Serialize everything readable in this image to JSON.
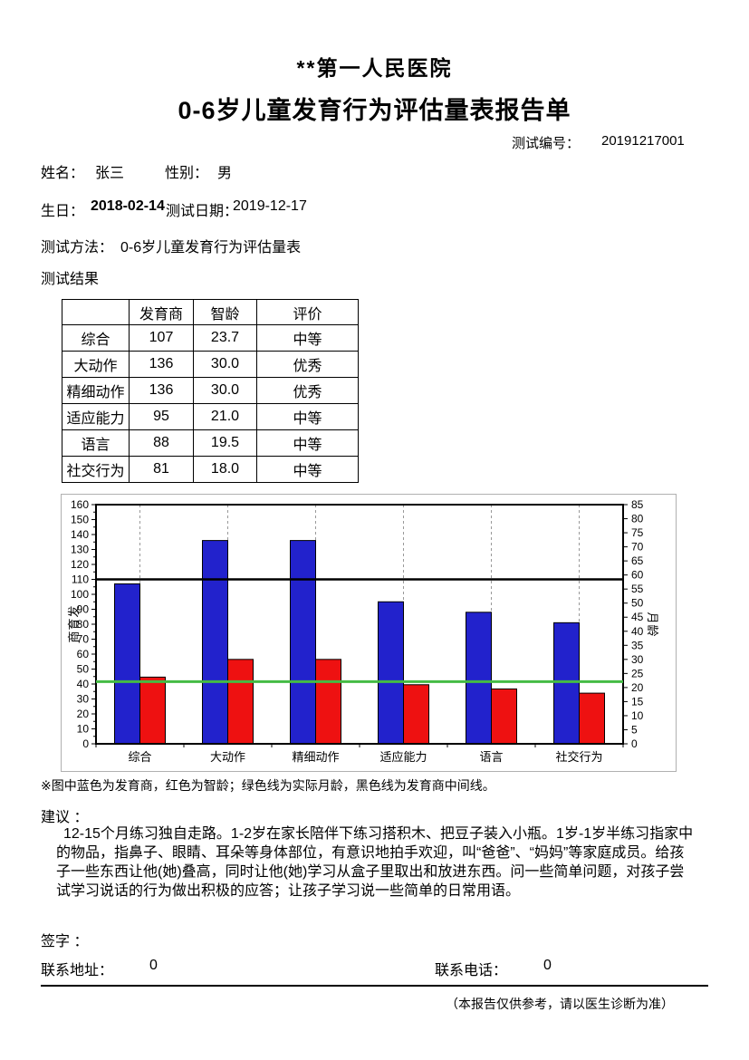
{
  "header": {
    "hospital": "**第一人民医院",
    "report_title": "0-6岁儿童发育行为评估量表报告单",
    "test_no_label": "测试编号：",
    "test_no_value": "20191217001"
  },
  "patient": {
    "name_label": "姓名：",
    "name": "张三",
    "gender_label": "性别：",
    "gender": "男",
    "birth_label": "生日：",
    "birth": "2018-02-14",
    "test_date_label": "测试日期：",
    "test_date": "2019-12-17",
    "method_label": "测试方法：",
    "method": "0-6岁儿童发育行为评估量表",
    "results_label": "测试结果"
  },
  "results_table": {
    "headers": [
      "",
      "发育商",
      "智龄",
      "评价"
    ],
    "rows": [
      {
        "name": "综合",
        "dq": "107",
        "ma": "23.7",
        "rating": "中等"
      },
      {
        "name": "大动作",
        "dq": "136",
        "ma": "30.0",
        "rating": "优秀"
      },
      {
        "name": "精细动作",
        "dq": "136",
        "ma": "30.0",
        "rating": "优秀"
      },
      {
        "name": "适应能力",
        "dq": "95",
        "ma": "21.0",
        "rating": "中等"
      },
      {
        "name": "语言",
        "dq": "88",
        "ma": "19.5",
        "rating": "中等"
      },
      {
        "name": "社交行为",
        "dq": "81",
        "ma": "18.0",
        "rating": "中等"
      }
    ]
  },
  "chart_data": {
    "type": "bar",
    "categories": [
      "综合",
      "大动作",
      "精细动作",
      "适应能力",
      "语言",
      "社交行为"
    ],
    "series": [
      {
        "name": "发育商",
        "axis": "left",
        "color": "#2222cc",
        "values": [
          107,
          136,
          136,
          95,
          88,
          81
        ]
      },
      {
        "name": "智龄",
        "axis": "right",
        "color": "#ee1111",
        "values": [
          23.7,
          30.0,
          30.0,
          21.0,
          19.5,
          18.0
        ]
      }
    ],
    "left_axis": {
      "label": "发育商",
      "min": 0,
      "max": 160,
      "step": 10,
      "minor_step": 5
    },
    "right_axis": {
      "label": "月龄",
      "min": 0,
      "max": 85,
      "step": 5
    },
    "reference_lines": [
      {
        "name": "实际月龄",
        "axis": "right",
        "value": 22.1,
        "color": "#44bb44",
        "width": 3
      },
      {
        "name": "发育商中间线",
        "axis": "left",
        "value": 110,
        "color": "#000000",
        "width": 2.5
      }
    ],
    "grid": "dashed-vertical-at-category-centers",
    "legend_position": "none"
  },
  "note": "※图中蓝色为发育商，红色为智龄；绿色线为实际月龄，黑色线为发育商中间线。",
  "suggestion": {
    "label": "建议 ：",
    "text": "12-15个月练习独自走路。1-2岁在家长陪伴下练习搭积木、把豆子装入小瓶。1岁-1岁半练习指家中的物品，指鼻子、眼睛、耳朵等身体部位，有意识地拍手欢迎，叫“爸爸”、“妈妈”等家庭成员。给孩子一些东西让他(她)叠高，同时让他(她)学习从盒子里取出和放进东西。问一些简单问题，对孩子尝试学习说话的行为做出积极的应答；让孩子学习说一些简单的日常用语。"
  },
  "footer": {
    "sign_label": "签字 ：",
    "address_label": "联系地址：",
    "address": "0",
    "phone_label": "联系电话：",
    "phone": "0",
    "disclaimer": "（本报告仅供参考，请以医生诊断为准）"
  }
}
